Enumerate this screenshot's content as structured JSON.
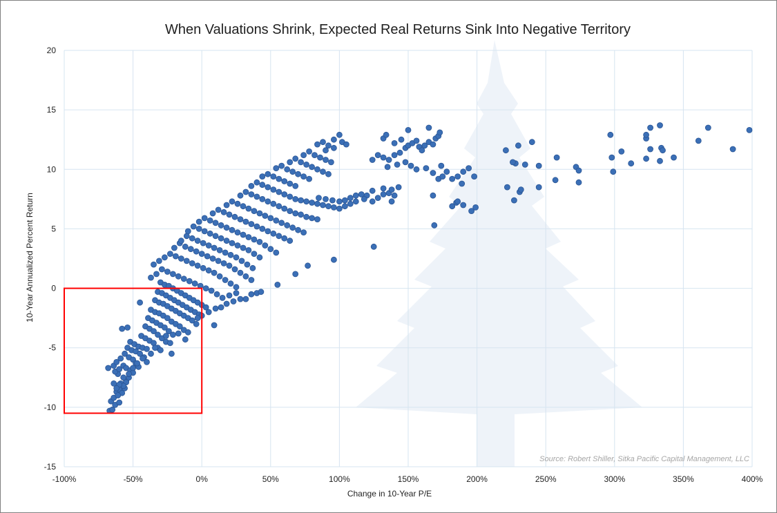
{
  "chart_data": {
    "type": "scatter",
    "title": "When Valuations Shrink, Expected Real Returns Sink Into Negative Territory",
    "xlabel": "Change in 10-Year P/E",
    "ylabel": "10-Year  Annualized Percent Return",
    "xlim": [
      -100,
      400
    ],
    "ylim": [
      -15,
      20
    ],
    "x_unit": "%",
    "x_ticks": [
      -100,
      -50,
      0,
      50,
      100,
      150,
      200,
      250,
      300,
      350,
      400
    ],
    "x_tick_labels": [
      "-100%",
      "-50%",
      "0%",
      "50%",
      "100%",
      "150%",
      "200%",
      "250%",
      "300%",
      "350%",
      "400%"
    ],
    "y_ticks": [
      -15,
      -10,
      -5,
      0,
      5,
      10,
      15,
      20
    ],
    "y_tick_labels": [
      "-15",
      "-10",
      "-5",
      "0",
      "5",
      "10",
      "15",
      "20"
    ],
    "grid": true,
    "legend": "none",
    "source": "Source: Robert Shiller, Sitka Pacific Capital Management, LLC",
    "colors": {
      "marker": "#3b6fb6",
      "marker_edge": "#2a5594",
      "grid": "#d6e4f0",
      "highlight_box": "#ff0000",
      "watermark": "#eef3f9"
    },
    "highlight_region": {
      "x": [
        -100,
        0
      ],
      "y": [
        -10.5,
        0
      ]
    },
    "points": [
      [
        -67,
        -10.3
      ],
      [
        -65,
        -10.2
      ],
      [
        -66,
        -9.5
      ],
      [
        -63,
        -9.8
      ],
      [
        -60,
        -9.6
      ],
      [
        -64,
        -9.2
      ],
      [
        -68,
        -6.7
      ],
      [
        -62,
        -8.7
      ],
      [
        -60,
        -8.5
      ],
      [
        -58,
        -8.8
      ],
      [
        -56,
        -8.4
      ],
      [
        -59,
        -8.0
      ],
      [
        -55,
        -7.8
      ],
      [
        -57,
        -7.5
      ],
      [
        -53,
        -7.5
      ],
      [
        -61,
        -7.2
      ],
      [
        -63,
        -7.0
      ],
      [
        -64,
        -6.5
      ],
      [
        -62,
        -6.2
      ],
      [
        -60,
        -6.8
      ],
      [
        -57,
        -6.5
      ],
      [
        -55,
        -6.7
      ],
      [
        -52,
        -6.9
      ],
      [
        -50,
        -7.1
      ],
      [
        -59,
        -5.9
      ],
      [
        -56,
        -5.5
      ],
      [
        -53,
        -5.8
      ],
      [
        -50,
        -6.0
      ],
      [
        -48,
        -6.3
      ],
      [
        -46,
        -6.6
      ],
      [
        -54,
        -5.0
      ],
      [
        -51,
        -5.2
      ],
      [
        -48,
        -5.3
      ],
      [
        -45,
        -5.5
      ],
      [
        -42,
        -5.8
      ],
      [
        -40,
        -6.2
      ],
      [
        -52,
        -4.5
      ],
      [
        -49,
        -4.7
      ],
      [
        -46,
        -4.9
      ],
      [
        -43,
        -5.0
      ],
      [
        -40,
        -5.1
      ],
      [
        -37,
        -5.5
      ],
      [
        -58,
        -3.4
      ],
      [
        -54,
        -3.3
      ],
      [
        -44,
        -4.0
      ],
      [
        -41,
        -4.2
      ],
      [
        -38,
        -4.4
      ],
      [
        -35,
        -4.6
      ],
      [
        -32,
        -5.0
      ],
      [
        -30,
        -5.2
      ],
      [
        -41,
        -3.2
      ],
      [
        -38,
        -3.4
      ],
      [
        -35,
        -3.6
      ],
      [
        -32,
        -3.9
      ],
      [
        -29,
        -4.2
      ],
      [
        -26,
        -4.5
      ],
      [
        -22,
        -5.5
      ],
      [
        -39,
        -2.5
      ],
      [
        -36,
        -2.7
      ],
      [
        -33,
        -2.9
      ],
      [
        -30,
        -3.1
      ],
      [
        -27,
        -3.3
      ],
      [
        -24,
        -3.6
      ],
      [
        -21,
        -3.9
      ],
      [
        -37,
        -1.8
      ],
      [
        -34,
        -2.0
      ],
      [
        -31,
        -2.1
      ],
      [
        -28,
        -2.3
      ],
      [
        -25,
        -2.5
      ],
      [
        -22,
        -2.8
      ],
      [
        -19,
        -3.0
      ],
      [
        -16,
        -3.2
      ],
      [
        -13,
        -3.5
      ],
      [
        -10,
        -3.7
      ],
      [
        -45,
        -1.2
      ],
      [
        -34,
        -1.0
      ],
      [
        -31,
        -1.2
      ],
      [
        -28,
        -1.3
      ],
      [
        -25,
        -1.5
      ],
      [
        -22,
        -1.7
      ],
      [
        -19,
        -1.9
      ],
      [
        -16,
        -2.1
      ],
      [
        -13,
        -2.3
      ],
      [
        -10,
        -2.5
      ],
      [
        -7,
        -2.7
      ],
      [
        -4,
        -3.0
      ],
      [
        -32,
        -0.3
      ],
      [
        -29,
        -0.4
      ],
      [
        -26,
        -0.6
      ],
      [
        -23,
        -0.8
      ],
      [
        -20,
        -1.0
      ],
      [
        -17,
        -1.2
      ],
      [
        -14,
        -1.4
      ],
      [
        -11,
        -1.6
      ],
      [
        -8,
        -1.8
      ],
      [
        -5,
        -2.0
      ],
      [
        -2,
        -2.2
      ],
      [
        0,
        -2.3
      ],
      [
        -30,
        0.5
      ],
      [
        -27,
        0.3
      ],
      [
        -24,
        0.2
      ],
      [
        -21,
        0.0
      ],
      [
        -18,
        -0.2
      ],
      [
        -15,
        -0.4
      ],
      [
        -12,
        -0.6
      ],
      [
        -9,
        -0.8
      ],
      [
        -6,
        -1.0
      ],
      [
        -3,
        -1.2
      ],
      [
        0,
        -1.4
      ],
      [
        3,
        -1.6
      ],
      [
        -37,
        0.9
      ],
      [
        -33,
        1.2
      ],
      [
        -29,
        1.6
      ],
      [
        -25,
        1.4
      ],
      [
        -21,
        1.2
      ],
      [
        -17,
        1.0
      ],
      [
        -13,
        0.8
      ],
      [
        -9,
        0.6
      ],
      [
        -5,
        0.4
      ],
      [
        -1,
        0.2
      ],
      [
        3,
        0.0
      ],
      [
        7,
        -0.2
      ],
      [
        11,
        -0.5
      ],
      [
        15,
        -0.8
      ],
      [
        -35,
        2.0
      ],
      [
        -31,
        2.3
      ],
      [
        -27,
        2.6
      ],
      [
        -23,
        2.9
      ],
      [
        -19,
        2.7
      ],
      [
        -15,
        2.5
      ],
      [
        -11,
        2.3
      ],
      [
        -7,
        2.1
      ],
      [
        -3,
        1.9
      ],
      [
        1,
        1.7
      ],
      [
        5,
        1.5
      ],
      [
        9,
        1.3
      ],
      [
        13,
        1.0
      ],
      [
        17,
        0.7
      ],
      [
        21,
        0.4
      ],
      [
        25,
        0.1
      ],
      [
        -20,
        3.4
      ],
      [
        -16,
        3.8
      ],
      [
        -12,
        3.5
      ],
      [
        -8,
        3.3
      ],
      [
        -4,
        3.1
      ],
      [
        0,
        2.9
      ],
      [
        4,
        2.7
      ],
      [
        8,
        2.5
      ],
      [
        12,
        2.3
      ],
      [
        16,
        2.1
      ],
      [
        20,
        1.9
      ],
      [
        24,
        1.6
      ],
      [
        28,
        1.3
      ],
      [
        32,
        1.0
      ],
      [
        36,
        0.7
      ],
      [
        -15,
        4.0
      ],
      [
        -11,
        4.4
      ],
      [
        -7,
        4.2
      ],
      [
        -3,
        4.0
      ],
      [
        1,
        3.8
      ],
      [
        5,
        3.6
      ],
      [
        9,
        3.4
      ],
      [
        13,
        3.2
      ],
      [
        17,
        3.0
      ],
      [
        21,
        2.8
      ],
      [
        25,
        2.6
      ],
      [
        29,
        2.3
      ],
      [
        33,
        2.0
      ],
      [
        37,
        1.7
      ],
      [
        -10,
        4.8
      ],
      [
        -6,
        5.2
      ],
      [
        -2,
        5.0
      ],
      [
        2,
        4.8
      ],
      [
        6,
        4.6
      ],
      [
        10,
        4.4
      ],
      [
        14,
        4.2
      ],
      [
        18,
        4.0
      ],
      [
        22,
        3.8
      ],
      [
        26,
        3.6
      ],
      [
        30,
        3.4
      ],
      [
        34,
        3.2
      ],
      [
        38,
        2.9
      ],
      [
        42,
        2.6
      ],
      [
        -2,
        5.6
      ],
      [
        2,
        5.9
      ],
      [
        6,
        5.7
      ],
      [
        10,
        5.5
      ],
      [
        14,
        5.3
      ],
      [
        18,
        5.1
      ],
      [
        22,
        4.9
      ],
      [
        26,
        4.7
      ],
      [
        30,
        4.5
      ],
      [
        34,
        4.3
      ],
      [
        38,
        4.1
      ],
      [
        42,
        3.9
      ],
      [
        46,
        3.6
      ],
      [
        50,
        3.3
      ],
      [
        54,
        3.0
      ],
      [
        8,
        6.3
      ],
      [
        12,
        6.6
      ],
      [
        16,
        6.4
      ],
      [
        20,
        6.2
      ],
      [
        24,
        6.0
      ],
      [
        28,
        5.8
      ],
      [
        32,
        5.6
      ],
      [
        36,
        5.4
      ],
      [
        40,
        5.2
      ],
      [
        44,
        5.0
      ],
      [
        48,
        4.8
      ],
      [
        52,
        4.6
      ],
      [
        56,
        4.4
      ],
      [
        60,
        4.2
      ],
      [
        64,
        4.0
      ],
      [
        18,
        7.0
      ],
      [
        22,
        7.3
      ],
      [
        26,
        7.1
      ],
      [
        30,
        6.9
      ],
      [
        34,
        6.7
      ],
      [
        38,
        6.5
      ],
      [
        42,
        6.3
      ],
      [
        46,
        6.1
      ],
      [
        50,
        5.9
      ],
      [
        54,
        5.7
      ],
      [
        58,
        5.5
      ],
      [
        62,
        5.3
      ],
      [
        66,
        5.1
      ],
      [
        70,
        4.9
      ],
      [
        74,
        4.7
      ],
      [
        28,
        7.8
      ],
      [
        32,
        8.1
      ],
      [
        36,
        7.9
      ],
      [
        40,
        7.7
      ],
      [
        44,
        7.5
      ],
      [
        48,
        7.3
      ],
      [
        52,
        7.1
      ],
      [
        56,
        6.9
      ],
      [
        60,
        6.7
      ],
      [
        64,
        6.5
      ],
      [
        68,
        6.3
      ],
      [
        72,
        6.2
      ],
      [
        76,
        6.0
      ],
      [
        80,
        5.9
      ],
      [
        84,
        5.8
      ],
      [
        36,
        8.6
      ],
      [
        40,
        8.9
      ],
      [
        44,
        8.7
      ],
      [
        48,
        8.5
      ],
      [
        52,
        8.3
      ],
      [
        56,
        8.1
      ],
      [
        60,
        7.9
      ],
      [
        64,
        7.7
      ],
      [
        68,
        7.5
      ],
      [
        72,
        7.4
      ],
      [
        76,
        7.3
      ],
      [
        80,
        7.2
      ],
      [
        84,
        7.1
      ],
      [
        88,
        7.0
      ],
      [
        92,
        6.9
      ],
      [
        96,
        6.8
      ],
      [
        100,
        6.7
      ],
      [
        44,
        9.4
      ],
      [
        48,
        9.6
      ],
      [
        52,
        9.4
      ],
      [
        56,
        9.2
      ],
      [
        60,
        9.0
      ],
      [
        64,
        8.8
      ],
      [
        68,
        8.6
      ],
      [
        85,
        7.6
      ],
      [
        90,
        7.5
      ],
      [
        95,
        7.4
      ],
      [
        100,
        7.3
      ],
      [
        104,
        7.4
      ],
      [
        108,
        7.6
      ],
      [
        112,
        7.8
      ],
      [
        116,
        7.9
      ],
      [
        120,
        7.8
      ],
      [
        54,
        10.1
      ],
      [
        58,
        10.3
      ],
      [
        62,
        10.0
      ],
      [
        66,
        9.8
      ],
      [
        70,
        9.6
      ],
      [
        74,
        9.4
      ],
      [
        78,
        9.2
      ],
      [
        104,
        6.9
      ],
      [
        108,
        7.1
      ],
      [
        112,
        7.3
      ],
      [
        118,
        7.5
      ],
      [
        124,
        7.3
      ],
      [
        128,
        7.6
      ],
      [
        132,
        7.9
      ],
      [
        136,
        8.0
      ],
      [
        140,
        7.8
      ],
      [
        64,
        10.6
      ],
      [
        68,
        10.9
      ],
      [
        72,
        10.6
      ],
      [
        76,
        10.4
      ],
      [
        80,
        10.2
      ],
      [
        84,
        10.0
      ],
      [
        88,
        9.8
      ],
      [
        92,
        9.6
      ],
      [
        124,
        8.2
      ],
      [
        132,
        8.4
      ],
      [
        138,
        8.3
      ],
      [
        143,
        8.5
      ],
      [
        138,
        7.3
      ],
      [
        74,
        11.2
      ],
      [
        78,
        11.5
      ],
      [
        82,
        11.2
      ],
      [
        86,
        11.0
      ],
      [
        90,
        10.8
      ],
      [
        94,
        10.6
      ],
      [
        84,
        12.1
      ],
      [
        88,
        12.3
      ],
      [
        92,
        12.0
      ],
      [
        96,
        12.5
      ],
      [
        100,
        12.9
      ],
      [
        102,
        12.3
      ],
      [
        105,
        12.1
      ],
      [
        90,
        11.6
      ],
      [
        96,
        11.8
      ],
      [
        132,
        11.0
      ],
      [
        136,
        10.8
      ],
      [
        140,
        11.2
      ],
      [
        144,
        11.4
      ],
      [
        148,
        11.8
      ],
      [
        150,
        12.0
      ],
      [
        153,
        12.2
      ],
      [
        156,
        12.4
      ],
      [
        158,
        11.9
      ],
      [
        160,
        11.6
      ],
      [
        162,
        12.0
      ],
      [
        165,
        12.3
      ],
      [
        168,
        12.1
      ],
      [
        170,
        12.6
      ],
      [
        172,
        12.8
      ],
      [
        140,
        12.2
      ],
      [
        145,
        12.5
      ],
      [
        150,
        13.3
      ],
      [
        165,
        13.5
      ],
      [
        173,
        13.1
      ],
      [
        132,
        12.6
      ],
      [
        134,
        12.9
      ],
      [
        128,
        11.2
      ],
      [
        124,
        10.8
      ],
      [
        135,
        10.2
      ],
      [
        142,
        10.4
      ],
      [
        148,
        10.6
      ],
      [
        152,
        10.3
      ],
      [
        156,
        10.0
      ],
      [
        163,
        10.1
      ],
      [
        168,
        9.7
      ],
      [
        172,
        9.2
      ],
      [
        175,
        9.4
      ],
      [
        174,
        10.3
      ],
      [
        178,
        9.8
      ],
      [
        182,
        9.2
      ],
      [
        186,
        9.4
      ],
      [
        190,
        9.8
      ],
      [
        194,
        10.1
      ],
      [
        198,
        9.4
      ],
      [
        189,
        8.8
      ],
      [
        185,
        7.2
      ],
      [
        190,
        7.0
      ],
      [
        186,
        7.3
      ],
      [
        182,
        6.9
      ],
      [
        196,
        6.5
      ],
      [
        199,
        6.8
      ],
      [
        169,
        5.3
      ],
      [
        168,
        7.8
      ],
      [
        125,
        3.5
      ],
      [
        96,
        2.4
      ],
      [
        77,
        1.9
      ],
      [
        68,
        1.2
      ],
      [
        55,
        0.3
      ],
      [
        40,
        -0.4
      ],
      [
        32,
        -0.9
      ],
      [
        28,
        -0.9
      ],
      [
        23,
        -1.1
      ],
      [
        18,
        -1.3
      ],
      [
        14,
        -1.6
      ],
      [
        9,
        -3.1
      ],
      [
        43,
        -0.3
      ],
      [
        36,
        -0.5
      ],
      [
        -3,
        -2.5
      ],
      [
        5,
        -2.0
      ],
      [
        10,
        -1.7
      ],
      [
        20,
        -0.6
      ],
      [
        25,
        -0.4
      ],
      [
        -17,
        -3.8
      ],
      [
        -12,
        -4.3
      ],
      [
        -23,
        -4.6
      ],
      [
        -26,
        -4.0
      ],
      [
        -34,
        -5.0
      ],
      [
        -43,
        -5.9
      ],
      [
        -47,
        -6.3
      ],
      [
        -50,
        -6.7
      ],
      [
        -53,
        -7.2
      ],
      [
        -55,
        -7.9
      ],
      [
        -57,
        -8.2
      ],
      [
        -60,
        -8.1
      ],
      [
        -62,
        -8.4
      ],
      [
        -61,
        -9.0
      ],
      [
        -64,
        -8.0
      ],
      [
        221,
        11.6
      ],
      [
        230,
        12.0
      ],
      [
        240,
        12.3
      ],
      [
        228,
        10.5
      ],
      [
        235,
        10.4
      ],
      [
        245,
        10.3
      ],
      [
        226,
        10.6
      ],
      [
        231,
        8.1
      ],
      [
        222,
        8.5
      ],
      [
        227,
        7.4
      ],
      [
        232,
        8.3
      ],
      [
        245,
        8.5
      ],
      [
        258,
        11.0
      ],
      [
        257,
        9.1
      ],
      [
        272,
        10.2
      ],
      [
        274,
        9.9
      ],
      [
        274,
        8.9
      ],
      [
        297,
        12.9
      ],
      [
        298,
        11.0
      ],
      [
        299,
        9.8
      ],
      [
        305,
        11.5
      ],
      [
        312,
        10.5
      ],
      [
        323,
        12.6
      ],
      [
        323,
        12.9
      ],
      [
        326,
        13.5
      ],
      [
        333,
        13.7
      ],
      [
        334,
        11.8
      ],
      [
        326,
        11.7
      ],
      [
        335,
        11.6
      ],
      [
        323,
        10.9
      ],
      [
        333,
        10.7
      ],
      [
        343,
        11.0
      ],
      [
        361,
        12.4
      ],
      [
        368,
        13.5
      ],
      [
        386,
        11.7
      ],
      [
        398,
        13.3
      ]
    ]
  }
}
